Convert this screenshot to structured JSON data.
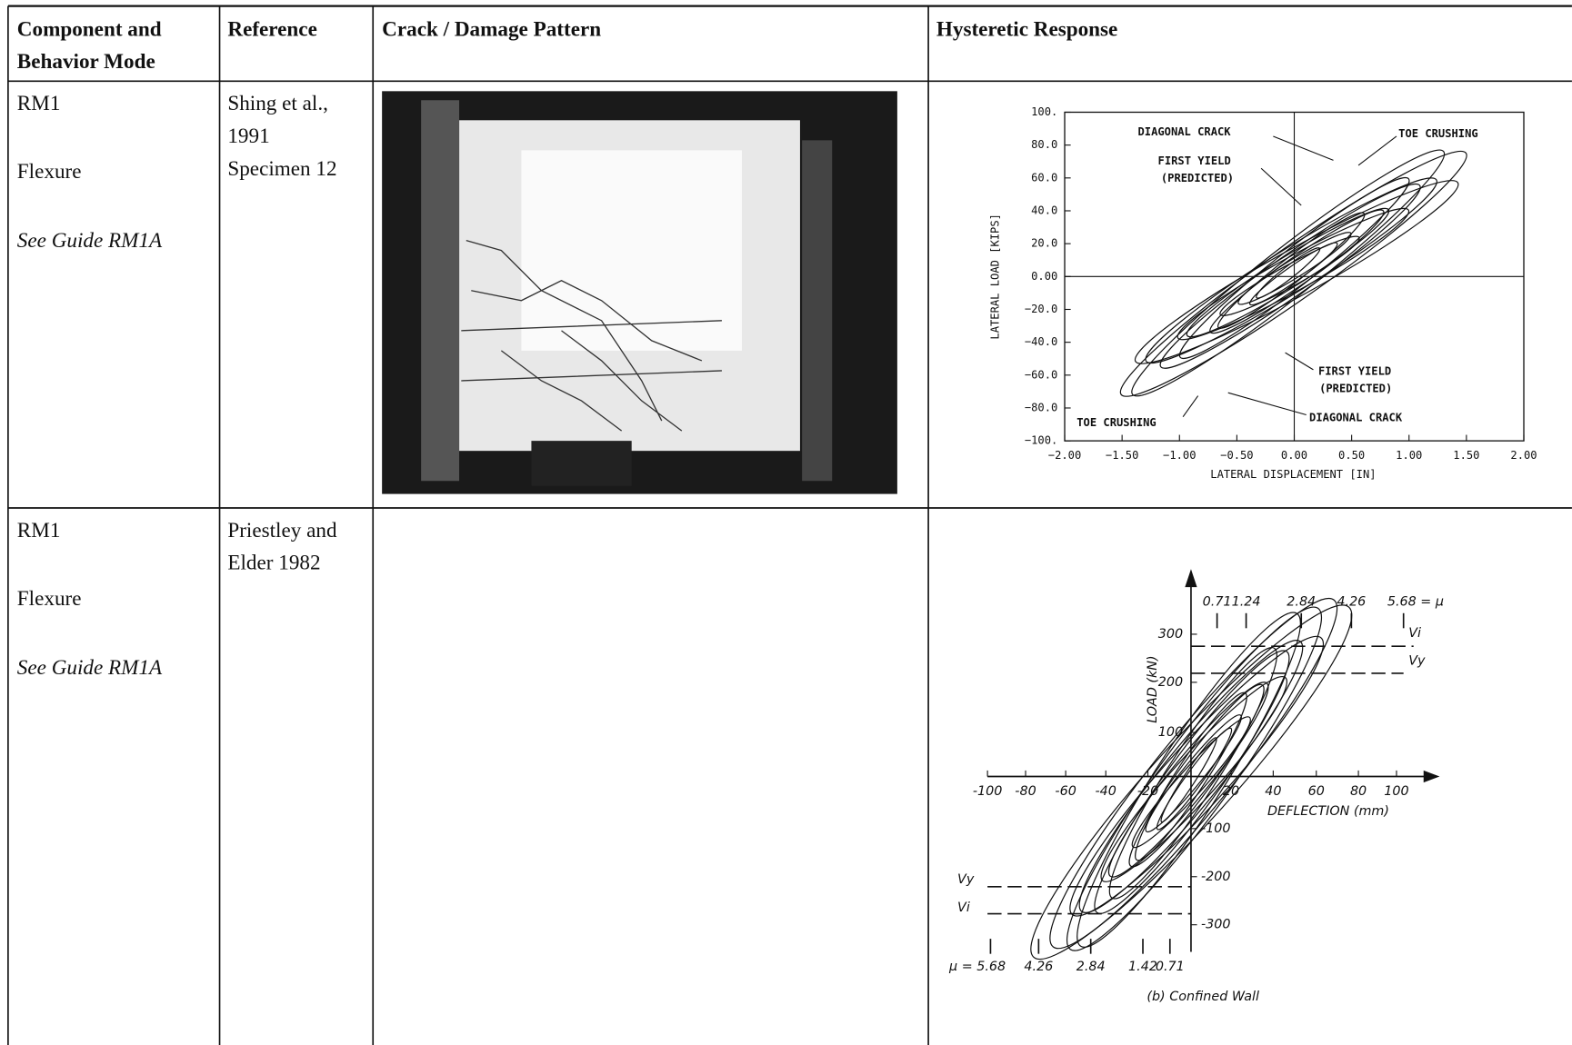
{
  "table": {
    "headers": [
      [
        "Component and",
        "Behavior Mode"
      ],
      [
        "Reference"
      ],
      [
        "Crack / Damage Pattern"
      ],
      [
        "Hysteretic Response"
      ]
    ],
    "rows": [
      {
        "component": "RM1",
        "mode": "Flexure",
        "guide": "See Guide RM1A",
        "reference": [
          "Shing et al.,",
          "1991",
          "Specimen 12"
        ],
        "figure": {
          "y_axis_label": "LATERAL LOAD [KIPS]",
          "x_axis_label": "LATERAL DISPLACEMENT [IN]",
          "yticks": [
            "100.",
            "80.0",
            "60.0",
            "40.0",
            "20.0",
            "0.00",
            "−20.0",
            "−40.0",
            "−60.0",
            "−80.0",
            "−100."
          ],
          "xticks": [
            "−2.00",
            "−1.50",
            "−1.00",
            "−0.50",
            "0.00",
            "0.50",
            "1.00",
            "1.50",
            "2.00"
          ],
          "annotations": [
            "DIAGONAL CRACK",
            "TOE CRUSHING",
            "FIRST YIELD",
            "(PREDICTED)",
            "FIRST YIELD",
            "(PREDICTED)",
            "DIAGONAL CRACK",
            "TOE CRUSHING"
          ]
        }
      },
      {
        "component": "RM1",
        "mode": "Flexure",
        "guide": "See Guide RM1A",
        "reference": [
          "Priestley and",
          "Elder 1982"
        ],
        "figure": {
          "y_axis_label": "LOAD (kN)",
          "x_axis_label": "DEFLECTION (mm)",
          "caption": "(b) Confined Wall",
          "yticks": [
            "300",
            "200",
            "100",
            "-100",
            "-200",
            "-300"
          ],
          "xticks": [
            "-100",
            "-80",
            "-60",
            "-40",
            "-20",
            "20",
            "40",
            "60",
            "80",
            "100"
          ],
          "top_ductility": [
            "0.71",
            "1.24",
            "2.84",
            "4.26",
            "5.68 = μ"
          ],
          "bottom_ductility": [
            "μ = 5.68",
            "4.26",
            "2.84",
            "1.42",
            "0.71"
          ],
          "shear_labels": [
            "Vi",
            "Vy",
            "Vy",
            "Vi"
          ]
        }
      }
    ]
  }
}
